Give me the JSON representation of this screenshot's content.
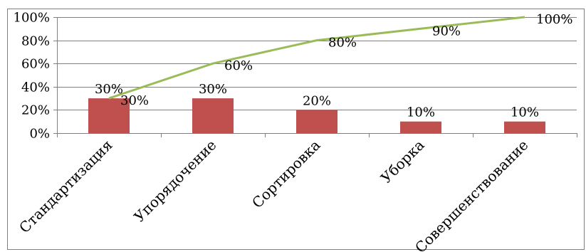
{
  "chart_data": {
    "type": "bar",
    "categories": [
      "Стандартизация",
      "Упорядочение",
      "Сортировка",
      "Уборка",
      "Совершенствование"
    ],
    "series": [
      {
        "type": "bar",
        "values": [
          30,
          30,
          20,
          10,
          10
        ],
        "labels": [
          "30%",
          "30%",
          "20%",
          "10%",
          "10%"
        ]
      },
      {
        "type": "line",
        "values": [
          30,
          60,
          80,
          90,
          100
        ],
        "labels": [
          "30%",
          "60%",
          "80%",
          "90%",
          "100%"
        ]
      }
    ],
    "y_ticks": [
      "0%",
      "20%",
      "40%",
      "60%",
      "80%",
      "100%"
    ],
    "ylim": [
      0,
      100
    ],
    "grid": true,
    "legend": "none"
  },
  "colors": {
    "bar": "#C0504D",
    "line": "#9BBB59",
    "grid": "#808080",
    "axis": "#808080",
    "border": "#808080"
  }
}
